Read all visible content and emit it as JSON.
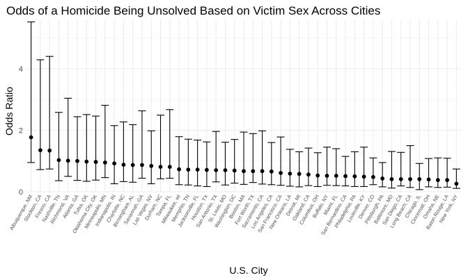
{
  "chart_data": {
    "type": "scatter",
    "title": "Odds of a Homicide Being Unsolved Based on Victim Sex Across Cities",
    "xlabel": "U.S. City",
    "ylabel": "Odds Ratio",
    "ylim": [
      0,
      5.6
    ],
    "y_ticks": [
      0,
      2,
      4
    ],
    "grid": true,
    "legend": "none",
    "error_bars": true,
    "categories": [
      "Albuquerque, NM",
      "Stockton, CA",
      "Fresno, CA",
      "Nashville, TN",
      "Richmond, VA",
      "Atlanta, GA",
      "Tulsa, OK",
      "Oklahoma City, OK",
      "Minneapolis, MN",
      "Indianapolis, IN",
      "Charlotte, NC",
      "Birmingham, AL",
      "Savannah, GA",
      "Las Vegas, NV",
      "Durham, NC",
      "Tampa, FL",
      "Milwaukee, wI",
      "Memphis, TN",
      "Jacksonville, FL",
      "Houston, TX",
      "San Antonio, TX",
      "St. Louis, MO",
      "Washington, DC",
      "Boston, MA",
      "Fort Worth, TX",
      "Sacramento, CA",
      "Los Angeles, CA",
      "San Francisco, CA",
      "New Orleans, LA",
      "Detroit, MI",
      "Oakland, CA",
      "Columbus, OH",
      "Buffalo, NY",
      "Miami, FL",
      "San Bernardino, CA",
      "Philadelphia, PA",
      "Louisville, KY",
      "Denver, CO",
      "Pittsburgh, PA",
      "Baltimore, MD",
      "San Diego, CA",
      "Long Beach, CA",
      "Chicago, IL",
      "Cincinnati, OH",
      "Omaha, NE",
      "Baton Rouge, LA",
      "New York, NY"
    ],
    "series": [
      {
        "odds_ratio": [
          1.77,
          1.35,
          1.34,
          1.03,
          1.01,
          1.0,
          0.98,
          0.97,
          0.95,
          0.92,
          0.88,
          0.87,
          0.87,
          0.84,
          0.81,
          0.81,
          0.73,
          0.72,
          0.72,
          0.71,
          0.7,
          0.7,
          0.69,
          0.67,
          0.67,
          0.67,
          0.66,
          0.61,
          0.59,
          0.58,
          0.56,
          0.53,
          0.52,
          0.52,
          0.51,
          0.5,
          0.49,
          0.48,
          0.43,
          0.41,
          0.41,
          0.41,
          0.41,
          0.4,
          0.38,
          0.38,
          0.26
        ],
        "ci_low": [
          0.95,
          0.72,
          0.74,
          0.36,
          0.5,
          0.37,
          0.34,
          0.38,
          0.46,
          0.26,
          0.33,
          0.31,
          0.44,
          0.26,
          0.42,
          0.44,
          0.23,
          0.22,
          0.19,
          0.17,
          0.32,
          0.22,
          0.28,
          0.24,
          0.3,
          0.25,
          0.23,
          0.21,
          0.18,
          0.16,
          0.2,
          0.17,
          0.21,
          0.2,
          0.19,
          0.17,
          0.17,
          0.23,
          0.16,
          0.12,
          0.19,
          0.14,
          0.07,
          0.16,
          0.14,
          0.15,
          0.11
        ],
        "ci_high": [
          5.52,
          4.29,
          4.4,
          2.58,
          3.04,
          2.44,
          2.51,
          2.46,
          2.81,
          2.15,
          2.27,
          2.18,
          2.63,
          1.98,
          2.49,
          2.67,
          1.79,
          1.71,
          1.68,
          1.62,
          1.96,
          1.61,
          1.7,
          1.94,
          1.89,
          1.98,
          1.6,
          1.78,
          1.38,
          1.3,
          1.42,
          1.27,
          1.45,
          1.4,
          1.15,
          1.3,
          1.45,
          1.1,
          0.95,
          1.31,
          1.28,
          1.5,
          0.92,
          1.08,
          1.1,
          1.09,
          0.74
        ]
      }
    ]
  }
}
